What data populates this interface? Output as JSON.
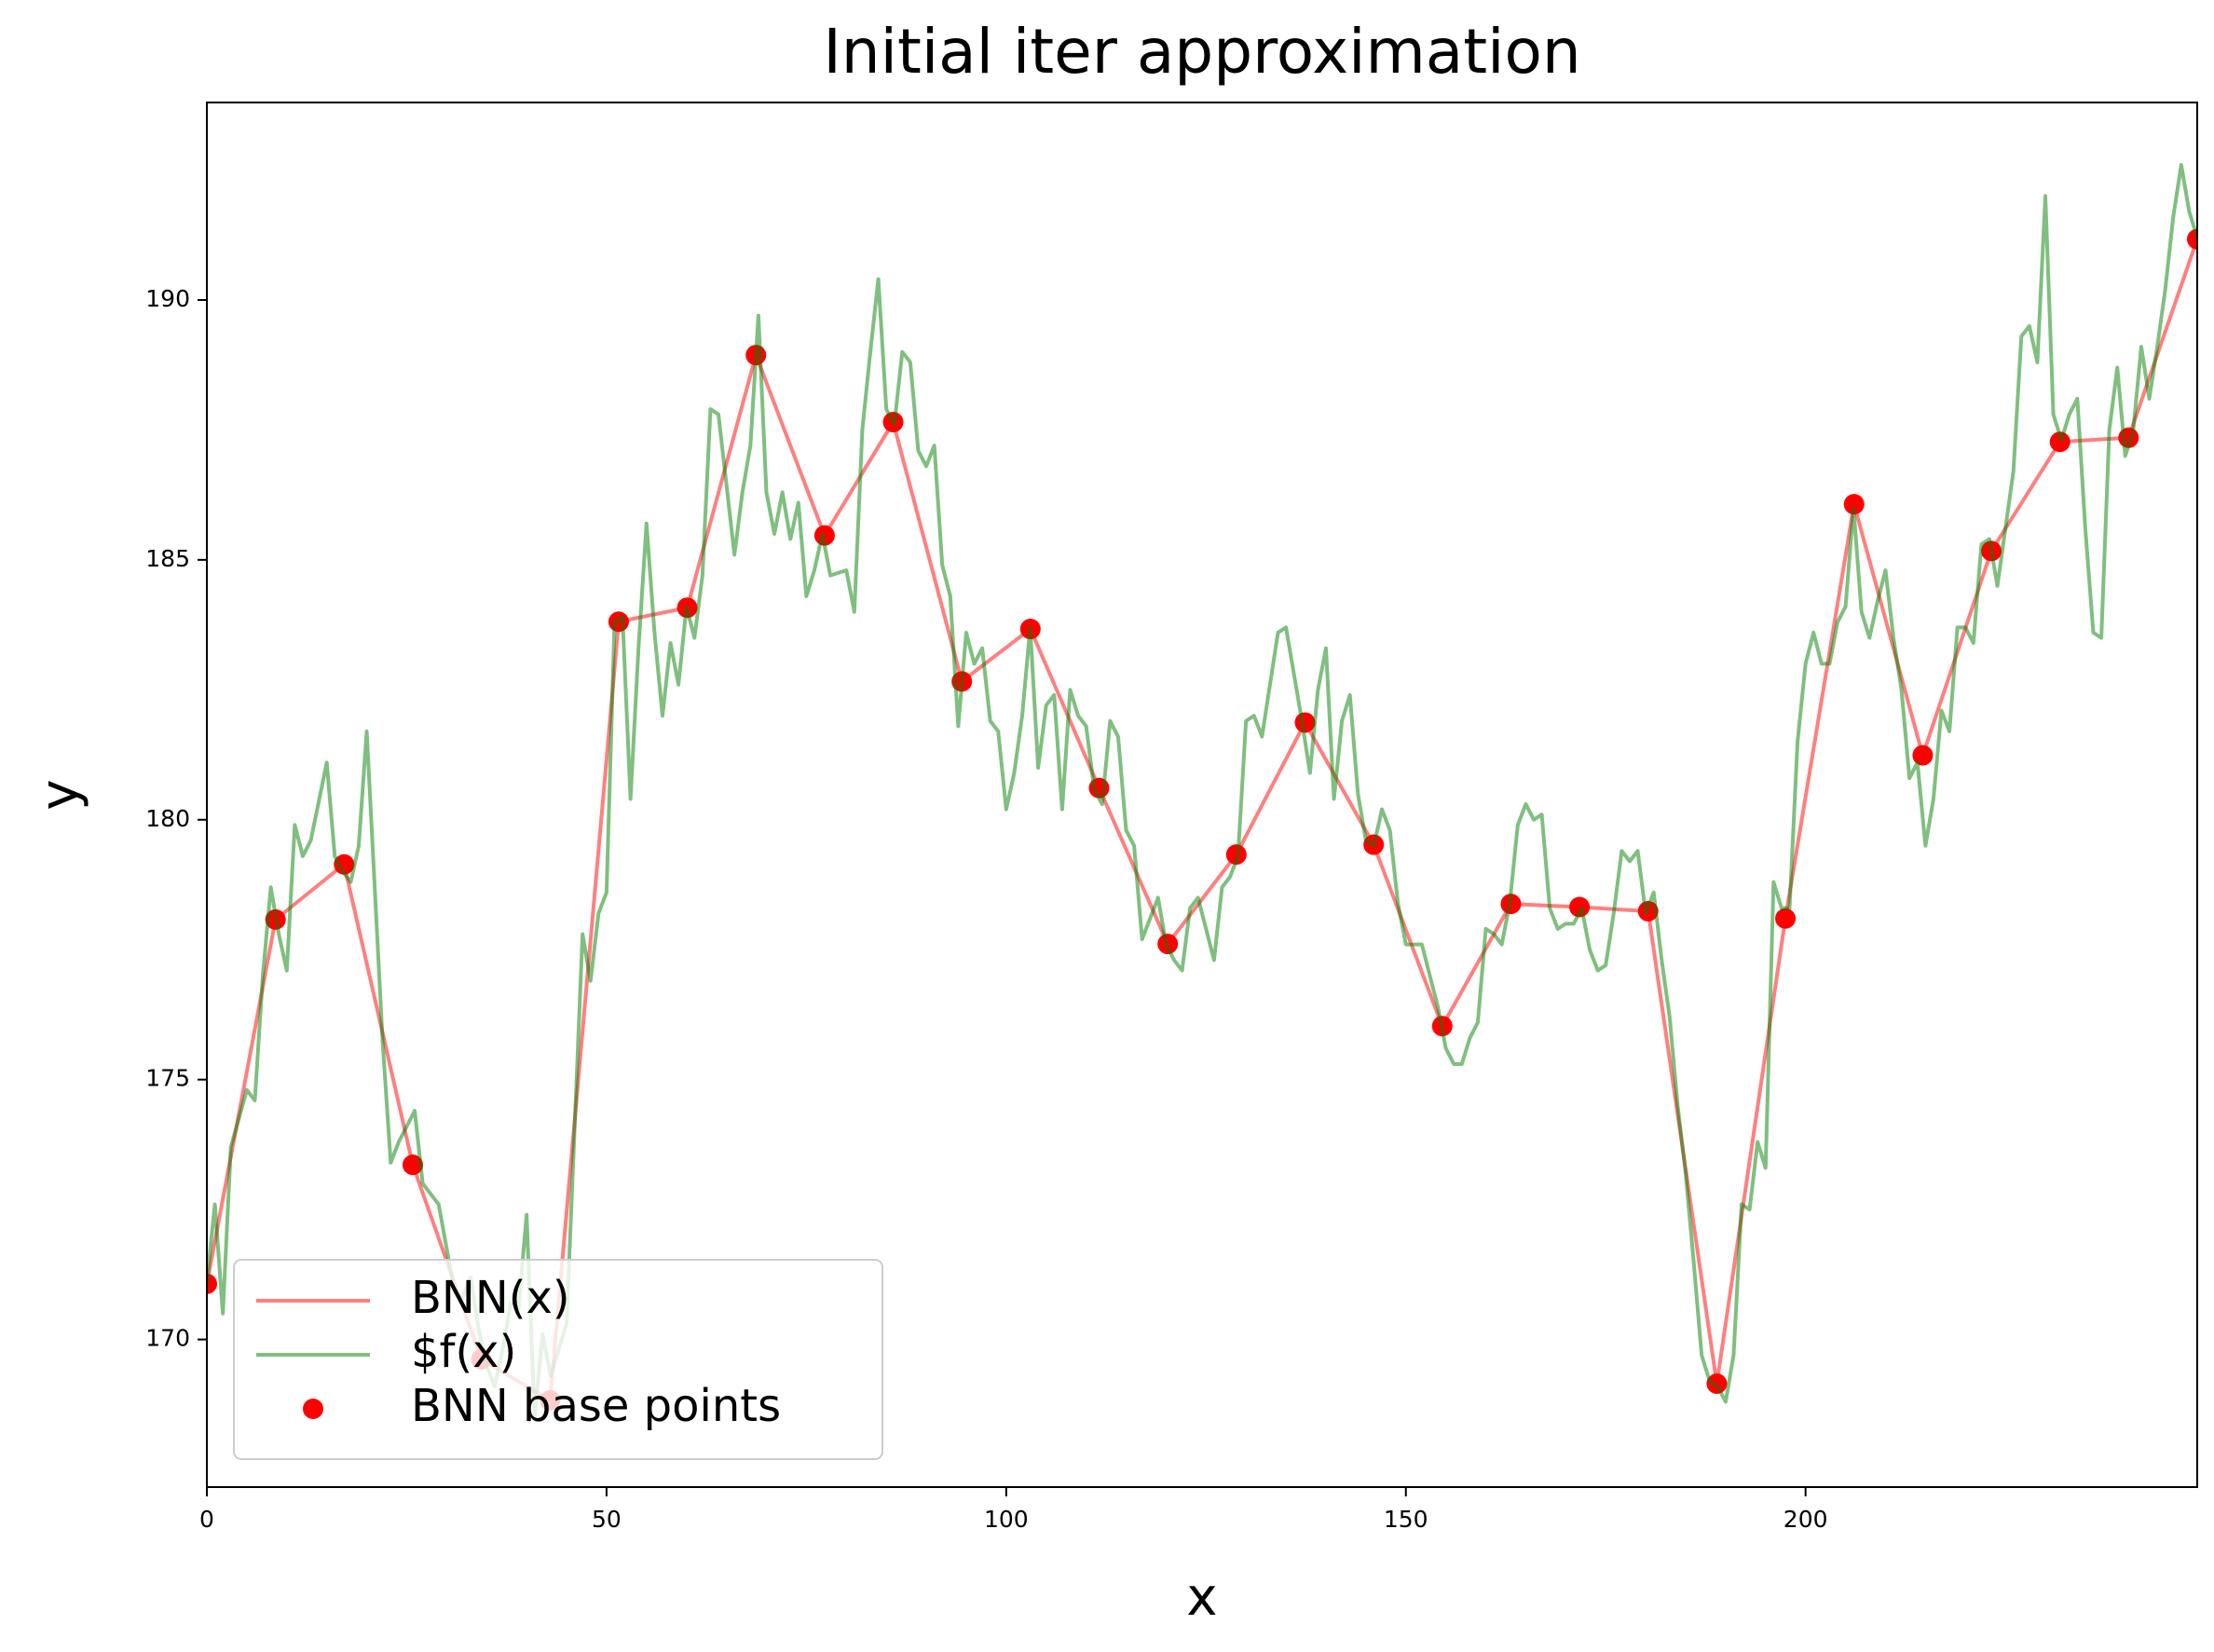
{
  "chart_data": {
    "type": "line",
    "title": "Initial iter approximation",
    "x_label": "x",
    "y_label": "y",
    "xlim": [
      0,
      249
    ],
    "ylim": [
      167.16,
      193.8
    ],
    "xticks": [
      0,
      50,
      100,
      150,
      200
    ],
    "yticks": [
      170,
      175,
      180,
      185,
      190
    ],
    "grid": false,
    "legend": "lower left",
    "series": [
      {
        "name": "BNN(x)",
        "type": "line",
        "color": "#ff0000",
        "alpha": 0.5,
        "x": [
          0,
          8.59,
          17.17,
          25.76,
          34.34,
          42.93,
          51.52,
          60.1,
          68.69,
          77.28,
          85.86,
          94.45,
          103.03,
          111.62,
          120.21,
          128.79,
          137.38,
          145.97,
          154.55,
          163.14,
          171.72,
          180.31,
          188.9,
          197.48,
          206.07,
          214.66,
          223.24,
          231.83,
          240.41,
          249
        ],
        "values": [
          171.07,
          178.08,
          179.14,
          173.36,
          169.62,
          168.83,
          183.81,
          184.08,
          188.94,
          185.47,
          187.65,
          182.66,
          183.67,
          180.61,
          177.61,
          179.33,
          181.87,
          179.52,
          176.03,
          178.38,
          178.32,
          178.24,
          169.15,
          178.1,
          186.07,
          181.24,
          185.17,
          187.27,
          187.35,
          191.17
        ]
      },
      {
        "name": "$f(x)",
        "type": "line",
        "color": "#008000",
        "alpha": 0.5,
        "x": [
          0,
          1,
          2,
          3,
          5,
          6,
          7,
          8,
          9,
          10,
          11,
          12,
          13,
          15,
          16,
          17,
          18,
          19,
          20,
          22,
          23,
          24,
          26,
          27,
          29,
          31,
          32,
          33,
          34,
          35,
          36,
          37,
          38,
          39,
          40,
          41,
          42,
          43,
          45,
          47,
          48,
          49,
          50,
          51,
          52,
          53,
          54,
          55,
          56,
          57,
          58,
          59,
          60,
          61,
          62,
          63,
          64,
          66,
          67,
          68,
          69,
          70,
          71,
          72,
          73,
          74,
          75,
          76,
          77,
          78,
          80,
          81,
          82,
          83,
          84,
          85,
          86,
          87,
          88,
          89,
          90,
          91,
          92,
          93,
          94,
          95,
          96,
          97,
          98,
          99,
          100,
          101,
          102,
          103,
          104,
          105,
          106,
          107,
          108,
          109,
          110,
          111,
          112,
          113,
          114,
          115,
          116,
          117,
          118,
          119,
          120,
          121,
          122,
          123,
          124,
          126,
          127,
          128,
          129,
          130,
          131,
          132,
          134,
          135,
          136,
          137,
          138,
          139,
          140,
          141,
          142,
          143,
          144,
          145,
          146,
          147,
          148,
          149,
          150,
          151,
          152,
          153,
          154,
          155,
          156,
          157,
          158,
          159,
          160,
          161,
          162,
          163,
          164,
          165,
          166,
          167,
          168,
          169,
          170,
          171,
          172,
          173,
          174,
          175,
          176,
          177,
          178,
          179,
          180,
          181,
          182,
          183,
          184,
          185,
          186,
          187,
          188,
          189,
          190,
          191,
          192,
          193,
          194,
          195,
          196,
          197,
          198,
          199,
          200,
          201,
          202,
          203,
          204,
          205,
          206,
          207,
          208,
          209,
          210,
          211,
          212,
          213,
          214,
          215,
          216,
          217,
          218,
          219,
          220,
          221,
          222,
          223,
          224,
          225,
          226,
          227,
          228,
          229,
          230,
          231,
          232,
          233,
          234,
          235,
          236,
          237,
          238,
          239,
          240,
          241,
          242,
          243,
          244,
          245,
          246,
          247,
          248,
          249
        ],
        "values": [
          171.1,
          172.6,
          170.5,
          173.7,
          174.8,
          174.6,
          177,
          178.7,
          177.8,
          177.1,
          179.9,
          179.3,
          179.6,
          181.1,
          179.3,
          179,
          178.8,
          179.5,
          181.7,
          175.7,
          173.4,
          173.8,
          174.4,
          173,
          172.6,
          170.9,
          170.8,
          171.2,
          170.2,
          169.5,
          169.1,
          169.8,
          170.7,
          170.6,
          172.4,
          168.5,
          170.1,
          169.3,
          170.3,
          177.8,
          176.9,
          178.2,
          178.6,
          183.8,
          183.9,
          180.4,
          183.3,
          185.7,
          183.6,
          182,
          183.4,
          182.6,
          184.1,
          183.5,
          184.7,
          187.9,
          187.8,
          185.1,
          186.3,
          187.2,
          189.7,
          186.3,
          185.5,
          186.3,
          185.4,
          186.1,
          184.3,
          184.8,
          185.5,
          184.7,
          184.8,
          184,
          187.5,
          189,
          190.4,
          187.9,
          187.6,
          189,
          188.8,
          187.1,
          186.8,
          187.2,
          184.9,
          184.3,
          181.8,
          183.6,
          183,
          183.3,
          181.9,
          181.7,
          180.2,
          180.9,
          182,
          183.7,
          181,
          182.2,
          182.4,
          180.2,
          182.5,
          182,
          181.8,
          180.6,
          180.3,
          181.9,
          181.6,
          179.8,
          179.5,
          177.7,
          178.1,
          178.5,
          177.6,
          177.3,
          177.1,
          178.3,
          178.5,
          177.3,
          178.7,
          178.9,
          179.3,
          181.9,
          182,
          181.6,
          183.6,
          183.7,
          182.8,
          181.9,
          180.9,
          182.5,
          183.3,
          180.4,
          181.9,
          182.4,
          180.5,
          179.6,
          179.5,
          180.2,
          179.8,
          178.4,
          177.6,
          177.6,
          177.6,
          177,
          176.4,
          175.6,
          175.3,
          175.3,
          175.8,
          176.1,
          177.9,
          177.8,
          177.6,
          178.4,
          179.9,
          180.3,
          180,
          180.1,
          178.3,
          177.9,
          178,
          178,
          178.3,
          177.5,
          177.1,
          177.2,
          178.2,
          179.4,
          179.2,
          179.4,
          178.2,
          178.6,
          177.3,
          176.2,
          174.5,
          173.2,
          171.5,
          169.7,
          169.2,
          169.1,
          168.8,
          169.7,
          172.6,
          172.5,
          173.8,
          173.3,
          178.8,
          178.3,
          178.3,
          181.5,
          183,
          183.6,
          183,
          183,
          183.8,
          184.1,
          186,
          184,
          183.5,
          184.2,
          184.8,
          183.5,
          182.5,
          180.8,
          181.1,
          179.5,
          180.4,
          182.1,
          181.7,
          183.7,
          183.7,
          183.4,
          185.3,
          185.4,
          184.5,
          185.6,
          186.7,
          189.3,
          189.5,
          188.8,
          192,
          187.8,
          187.3,
          187.8,
          188.1,
          185.6,
          183.6,
          183.5,
          187.5,
          188.7,
          187,
          187.5,
          189.1,
          188.1,
          189.1,
          190.2,
          191.6,
          192.6,
          191.7,
          191.2
        ]
      },
      {
        "name": "BNN base points",
        "type": "scatter",
        "color": "#ff0000",
        "alpha": 1,
        "x": [
          0,
          8.59,
          17.17,
          25.76,
          34.34,
          42.93,
          51.52,
          60.1,
          68.69,
          77.28,
          85.86,
          94.45,
          103.03,
          111.62,
          120.21,
          128.79,
          137.38,
          145.97,
          154.55,
          163.14,
          171.72,
          180.31,
          188.9,
          197.48,
          206.07,
          214.66,
          223.24,
          231.83,
          240.41,
          249
        ],
        "values": [
          171.07,
          178.08,
          179.14,
          173.36,
          169.62,
          168.83,
          183.81,
          184.08,
          188.94,
          185.47,
          187.65,
          182.66,
          183.67,
          180.61,
          177.61,
          179.33,
          181.87,
          179.52,
          176.03,
          178.38,
          178.32,
          178.24,
          169.15,
          178.1,
          186.07,
          181.24,
          185.17,
          187.27,
          187.35,
          191.17
        ]
      }
    ]
  }
}
